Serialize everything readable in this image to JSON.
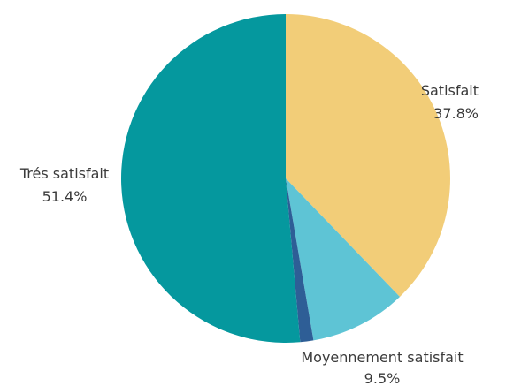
{
  "chart_data": {
    "type": "pie",
    "slices": [
      {
        "label": "Satisfait",
        "value": 37.8,
        "value_text": "37.8%",
        "color": "#F2CD78"
      },
      {
        "label": "Moyennement satisfait",
        "value": 9.5,
        "value_text": "9.5%",
        "color": "#5EC4D5"
      },
      {
        "label": "",
        "value": 1.3,
        "value_text": "",
        "color": "#2E5E96"
      },
      {
        "label": "Trés satisfait",
        "value": 51.4,
        "value_text": "51.4%",
        "color": "#05989E"
      }
    ]
  }
}
